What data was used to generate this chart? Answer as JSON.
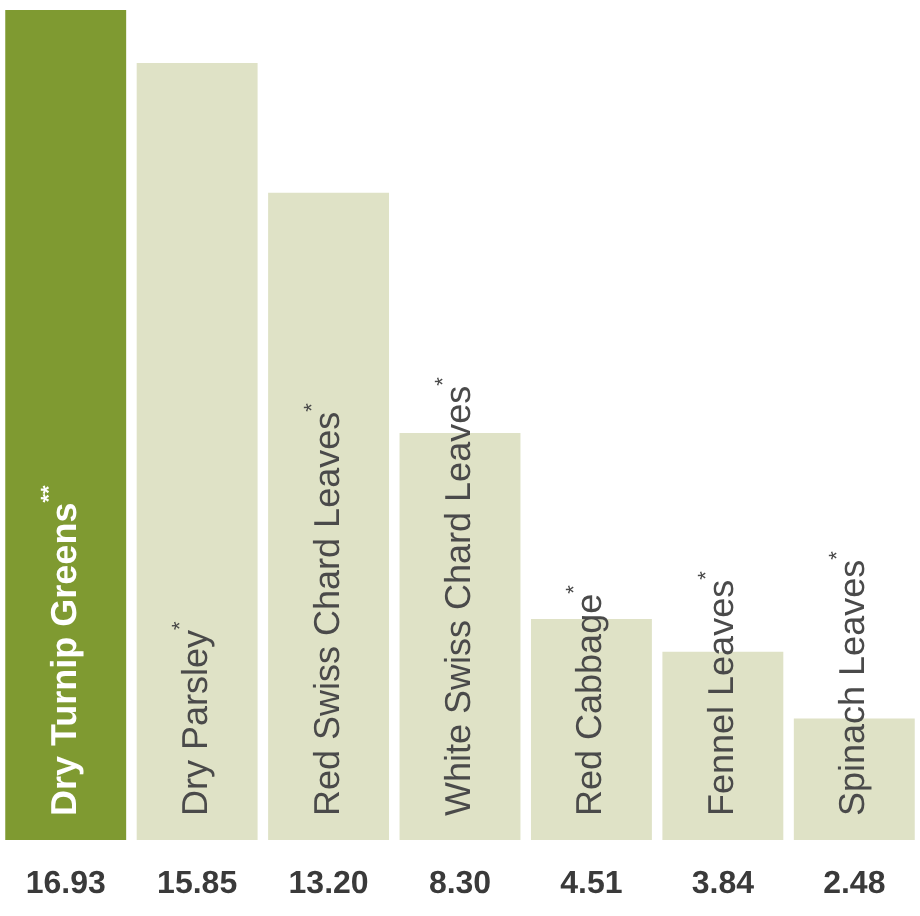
{
  "chart_data": {
    "type": "bar",
    "categories": [
      "Dry Turnip Greens$^{**}$",
      "Dry Parsley$^{*}$",
      "Red Swiss Chard Leaves$^{*}$",
      "White Swiss Chard Leaves$^{*}$",
      "Red Cabbage$^{*}$",
      "Fennel Leaves$^{*}$",
      "Spinach Leaves$^{*}$"
    ],
    "values": [
      16.93,
      15.85,
      13.2,
      8.3,
      4.51,
      3.84,
      2.48
    ],
    "value_labels": [
      "16.93",
      "15.85",
      "13.20",
      "8.30",
      "4.51",
      "3.84",
      "2.48"
    ],
    "colors": [
      "#7f9a31",
      "#dfe2c6",
      "#dfe2c6",
      "#dfe2c6",
      "#dfe2c6",
      "#dfe2c6",
      "#dfe2c6"
    ]
  }
}
